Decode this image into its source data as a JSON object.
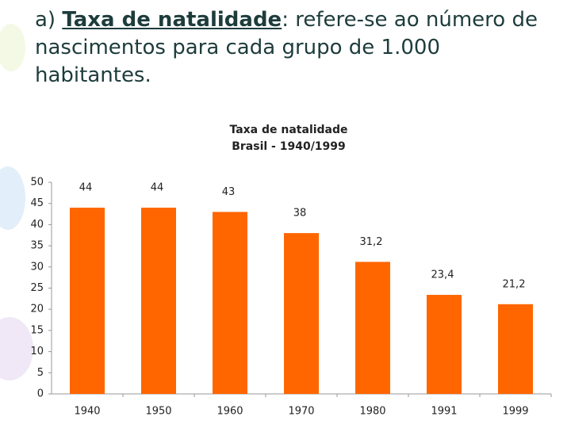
{
  "heading": {
    "prefix": "a) ",
    "term": "Taxa de natalidade",
    "text": ": refere-se ao número de nascimentos para cada grupo de 1.000 habitantes."
  },
  "chart_data": {
    "type": "bar",
    "title": "Taxa de natalidade",
    "subtitle": "Brasil - 1940/1999",
    "categories": [
      "1940",
      "1950",
      "1960",
      "1970",
      "1980",
      "1991",
      "1999"
    ],
    "values": [
      44,
      44,
      43,
      38,
      31.2,
      23.4,
      21.2
    ],
    "value_labels": [
      "44",
      "44",
      "43",
      "38",
      "31,2",
      "23,4",
      "21,2"
    ],
    "color": "#ff6600",
    "ylim": [
      0,
      50
    ],
    "yticks": [
      0,
      5,
      10,
      15,
      20,
      25,
      30,
      35,
      40,
      45,
      50
    ],
    "grid": false
  }
}
